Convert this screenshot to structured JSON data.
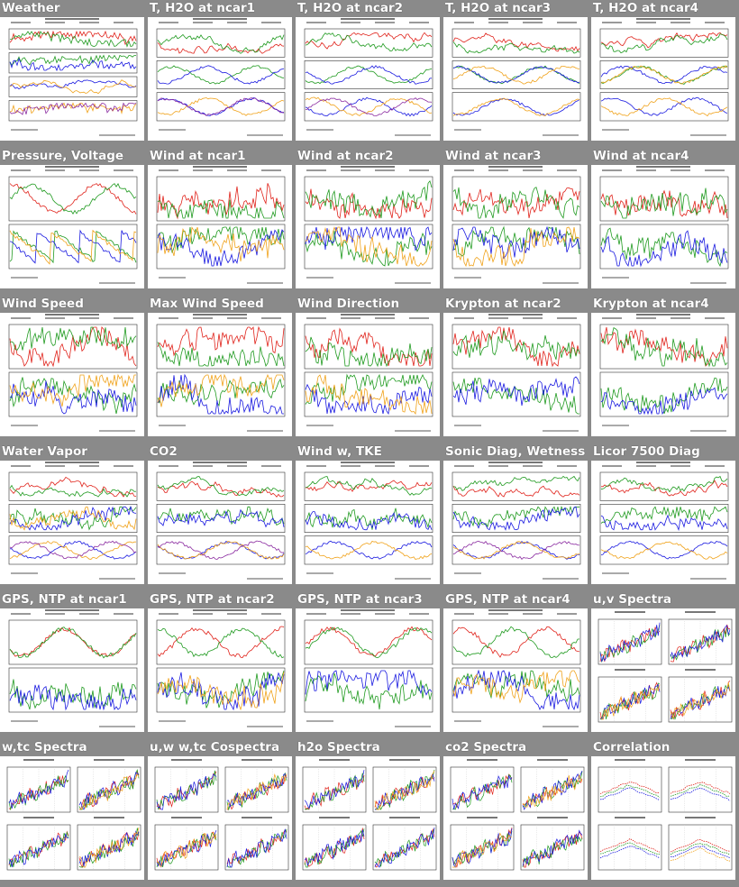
{
  "colors": {
    "page_background": "#8a8a8a",
    "panel_background": "#ffffff",
    "title_text": "#ffffff",
    "trace_red": "#e0231b",
    "trace_green": "#1f9a1f",
    "trace_blue": "#1a1ae0",
    "trace_orange": "#f0a21a",
    "trace_purple": "#8a2aa0",
    "trace_black": "#111111"
  },
  "rows": [
    [
      {
        "title": "Weather",
        "icon": "weather-plot-icon"
      },
      {
        "title": "T, H2O at ncar1",
        "icon": "line-plot-icon"
      },
      {
        "title": "T, H2O at ncar2",
        "icon": "line-plot-icon"
      },
      {
        "title": "T, H2O at ncar3",
        "icon": "line-plot-icon"
      },
      {
        "title": "T, H2O at ncar4",
        "icon": "line-plot-icon"
      }
    ],
    [
      {
        "title": "Pressure, Voltage",
        "icon": "line-plot-icon"
      },
      {
        "title": "Wind at ncar1",
        "icon": "line-plot-icon"
      },
      {
        "title": "Wind at ncar2",
        "icon": "line-plot-icon"
      },
      {
        "title": "Wind at ncar3",
        "icon": "line-plot-icon"
      },
      {
        "title": "Wind at ncar4",
        "icon": "line-plot-icon"
      }
    ],
    [
      {
        "title": "Wind Speed",
        "icon": "line-plot-icon"
      },
      {
        "title": "Max Wind Speed",
        "icon": "line-plot-icon"
      },
      {
        "title": "Wind Direction",
        "icon": "line-plot-icon"
      },
      {
        "title": "Krypton at ncar2",
        "icon": "line-plot-icon"
      },
      {
        "title": "Krypton at ncar4",
        "icon": "line-plot-icon"
      }
    ],
    [
      {
        "title": "Water Vapor",
        "icon": "line-plot-icon"
      },
      {
        "title": "CO2",
        "icon": "line-plot-icon"
      },
      {
        "title": "Wind w, TKE",
        "icon": "line-plot-icon"
      },
      {
        "title": "Sonic Diag, Wetness",
        "icon": "line-plot-icon"
      },
      {
        "title": "Licor 7500 Diag",
        "icon": "line-plot-icon"
      }
    ],
    [
      {
        "title": "GPS, NTP at ncar1",
        "icon": "line-plot-icon"
      },
      {
        "title": "GPS, NTP at ncar2",
        "icon": "line-plot-icon"
      },
      {
        "title": "GPS, NTP at ncar3",
        "icon": "line-plot-icon"
      },
      {
        "title": "GPS, NTP at ncar4",
        "icon": "line-plot-icon"
      },
      {
        "title": "u,v Spectra",
        "icon": "spectra-plot-icon"
      }
    ],
    [
      {
        "title": "w,tc Spectra",
        "icon": "spectra-plot-icon"
      },
      {
        "title": "u,w w,tc Cospectra",
        "icon": "spectra-plot-icon"
      },
      {
        "title": "h2o Spectra",
        "icon": "spectra-plot-icon"
      },
      {
        "title": "co2 Spectra",
        "icon": "spectra-plot-icon"
      },
      {
        "title": "Correlation",
        "icon": "correlation-plot-icon"
      }
    ]
  ]
}
